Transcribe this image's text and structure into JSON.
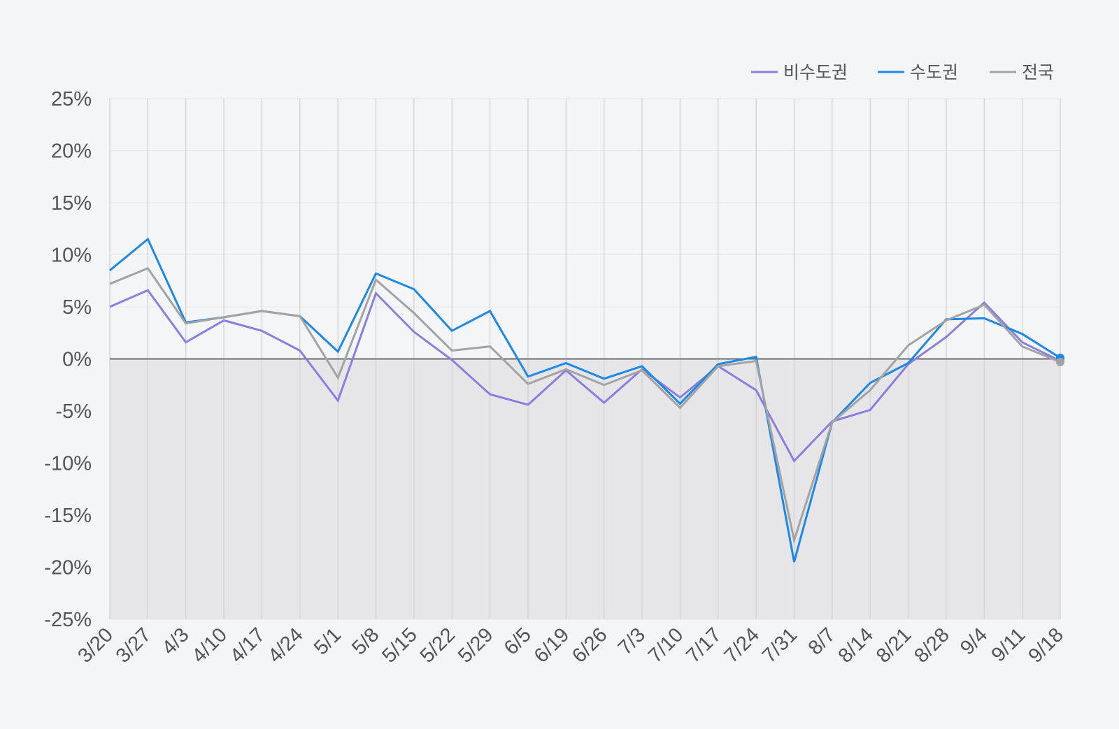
{
  "chart_data": {
    "type": "line",
    "categories": [
      "3/20",
      "3/27",
      "4/3",
      "4/10",
      "4/17",
      "4/24",
      "5/1",
      "5/8",
      "5/15",
      "5/22",
      "5/29",
      "6/5",
      "6/19",
      "6/26",
      "7/3",
      "7/10",
      "7/17",
      "7/24",
      "7/31",
      "8/7",
      "8/14",
      "8/21",
      "8/28",
      "9/4",
      "9/11",
      "9/18"
    ],
    "ylim": [
      -25,
      25
    ],
    "yticks": [
      25,
      20,
      15,
      10,
      5,
      0,
      -5,
      -10,
      -15,
      -20,
      -25
    ],
    "ytick_labels": [
      "25%",
      "20%",
      "15%",
      "10%",
      "5%",
      "0%",
      "-5%",
      "-10%",
      "-15%",
      "-20%",
      "-25%"
    ],
    "grid": true,
    "legend_position": "top-right",
    "negative_region_shaded": true,
    "series": [
      {
        "name": "비수도권",
        "color": "#8b7ee0",
        "values": [
          5.0,
          6.6,
          1.6,
          3.7,
          2.7,
          0.8,
          -4.0,
          6.3,
          2.6,
          -0.1,
          -3.4,
          -4.4,
          -1.1,
          -4.2,
          -1.0,
          -3.7,
          -0.7,
          -3.0,
          -9.8,
          -6.0,
          -4.9,
          -0.5,
          2.1,
          5.4,
          1.6,
          -0.2
        ]
      },
      {
        "name": "수도권",
        "color": "#1e88e5",
        "values": [
          8.5,
          11.5,
          3.5,
          4.0,
          4.6,
          4.1,
          0.7,
          8.2,
          6.7,
          2.7,
          4.6,
          -1.7,
          -0.4,
          -1.9,
          -0.7,
          -4.3,
          -0.5,
          0.2,
          -19.5,
          -6.1,
          -2.3,
          -0.4,
          3.8,
          3.9,
          2.4,
          0.1
        ]
      },
      {
        "name": "전국",
        "color": "#a3a3a3",
        "values": [
          7.2,
          8.7,
          3.4,
          4.0,
          4.6,
          4.1,
          -1.8,
          7.6,
          4.4,
          0.8,
          1.2,
          -2.4,
          -1.0,
          -2.5,
          -1.1,
          -4.7,
          -0.7,
          -0.2,
          -17.4,
          -6.1,
          -3.0,
          1.3,
          3.7,
          5.2,
          1.2,
          -0.3
        ]
      }
    ]
  }
}
